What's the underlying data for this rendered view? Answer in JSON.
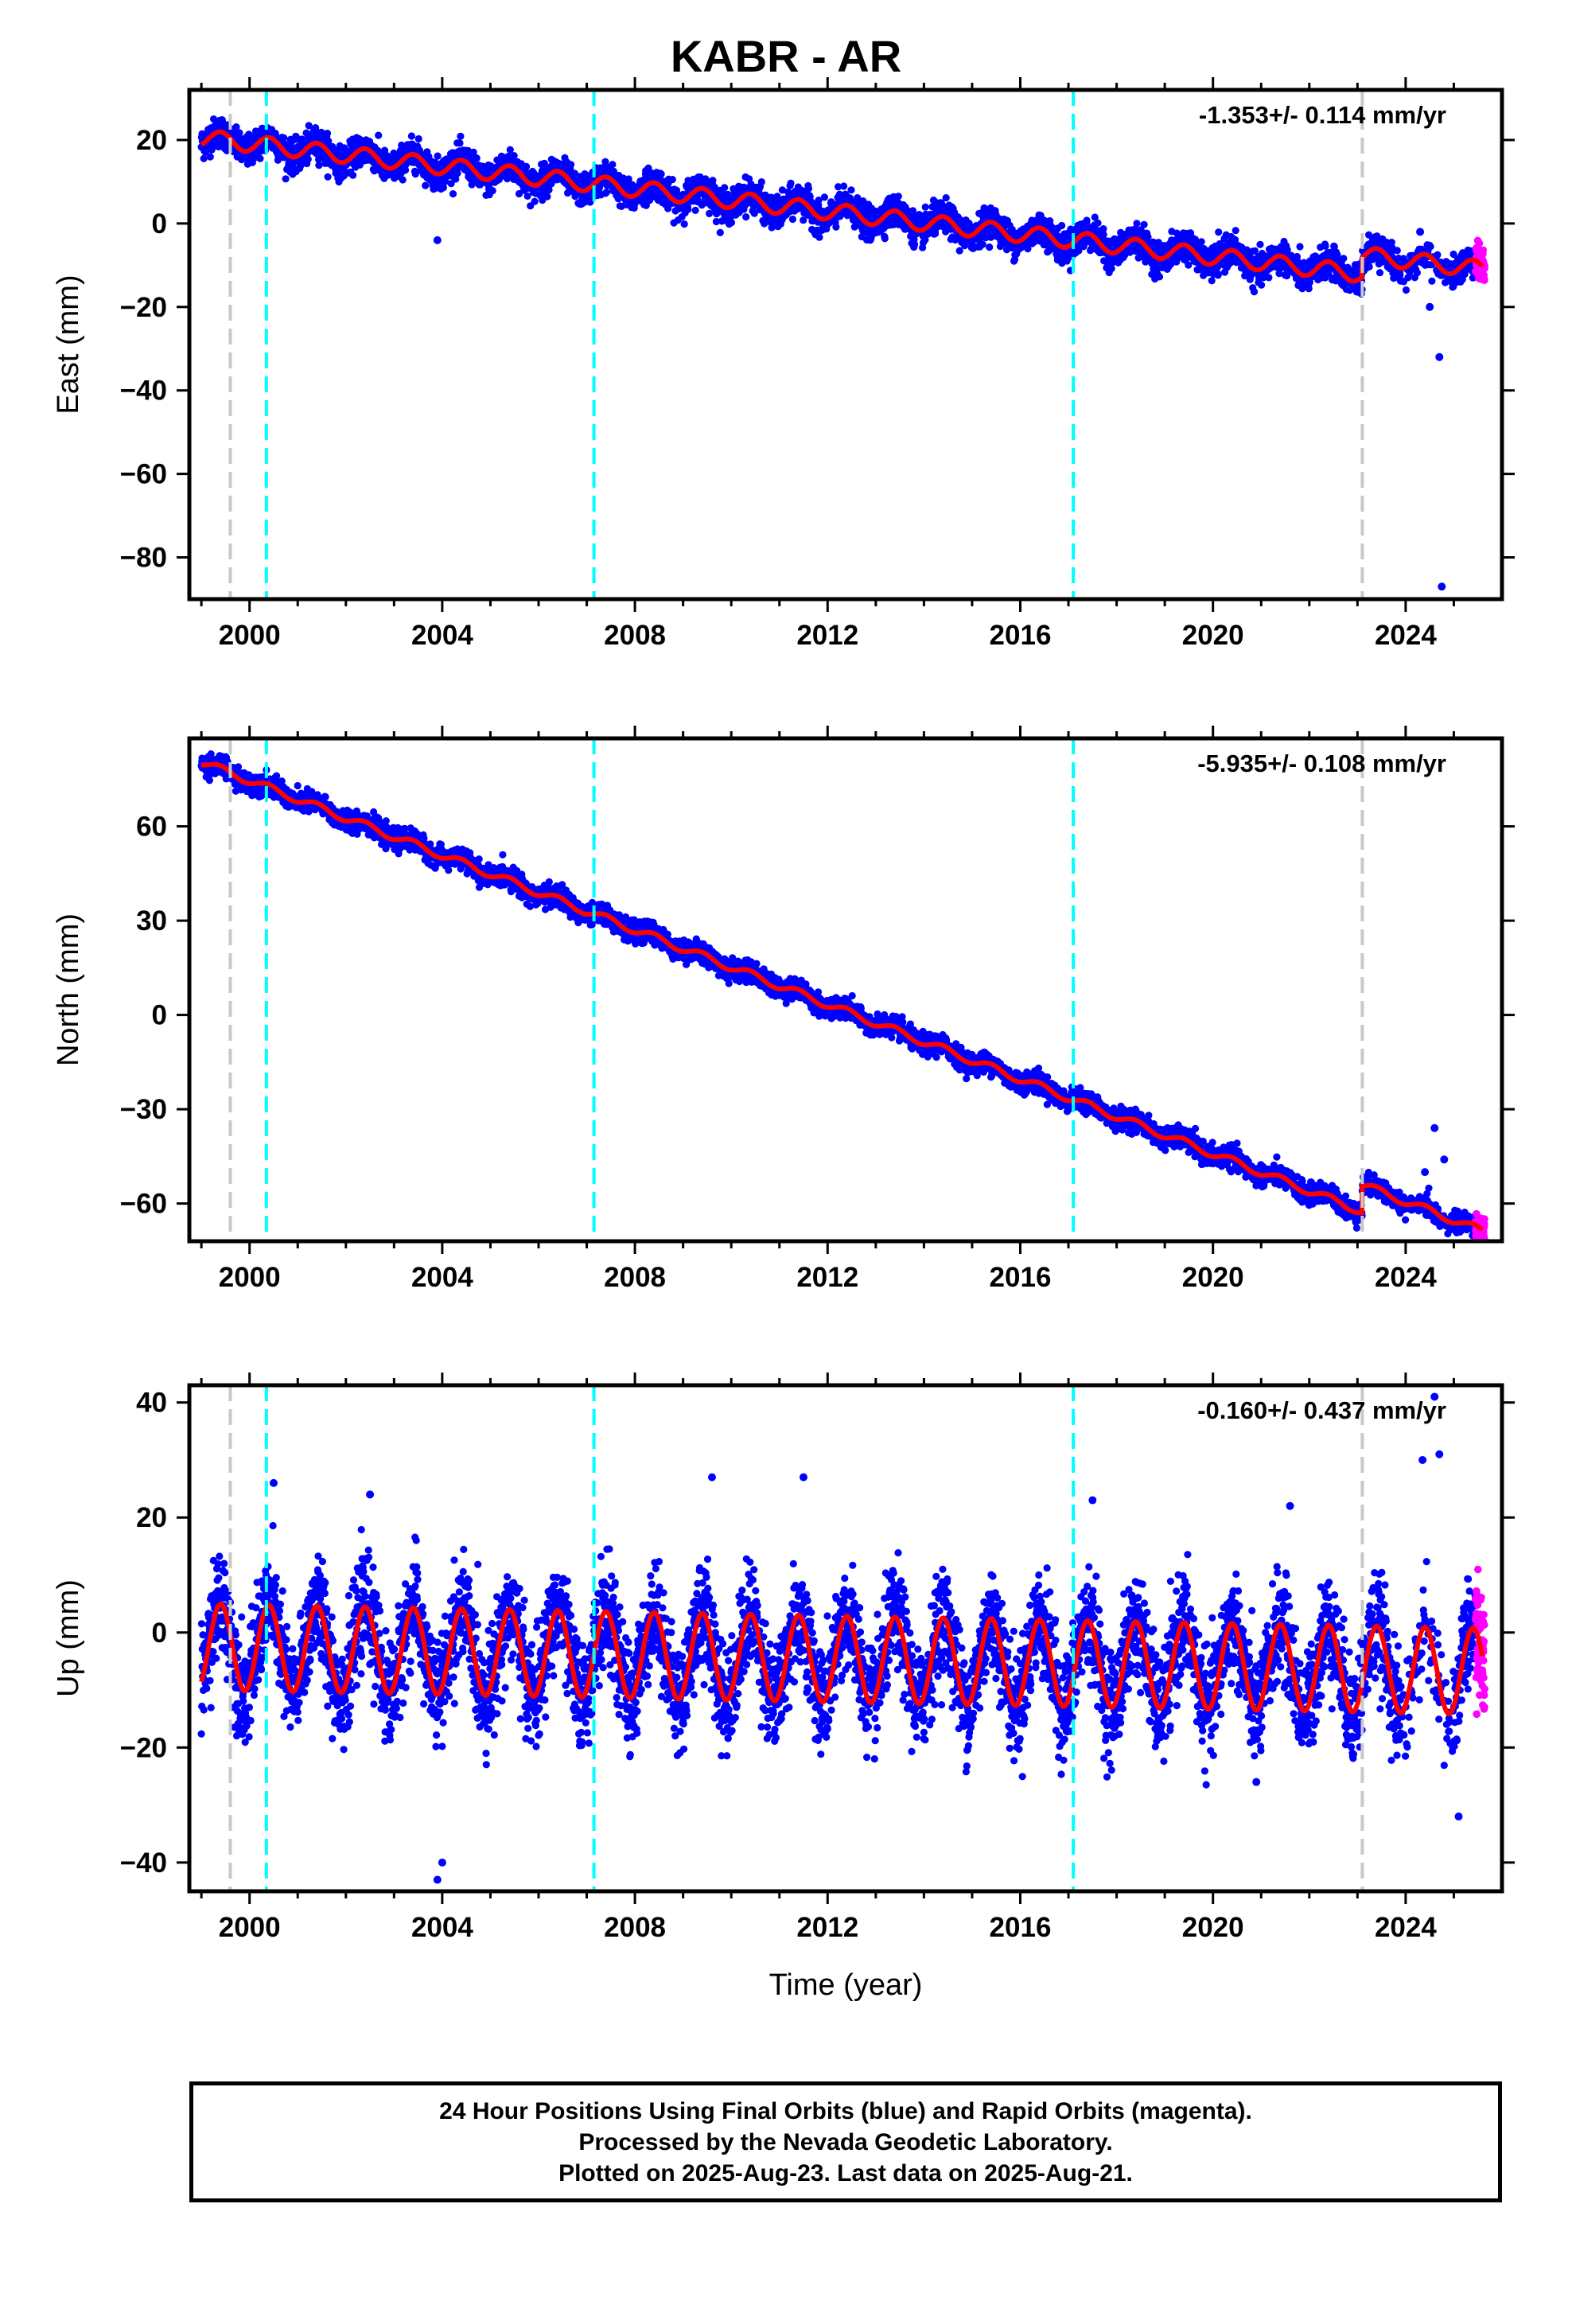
{
  "title": "KABR - AR",
  "footer": {
    "line1": "24 Hour Positions Using Final Orbits (blue) and Rapid Orbits (magenta).",
    "line2": "Processed by the Nevada Geodetic Laboratory.",
    "line3": "Plotted on 2025-Aug-23. Last data on 2025-Aug-21."
  },
  "colors": {
    "final_orbits": "#0000ff",
    "rapid_orbits": "#ff00ff",
    "model": "#ff0000",
    "equipment_change": "#00ffff",
    "earthquake": "#c8c8c8"
  },
  "chart_data": [
    {
      "type": "scatter",
      "component": "East",
      "ylabel": "East (mm)",
      "xlabel": "",
      "rate_text": "-1.353+/- 0.114 mm/yr",
      "xlim": [
        1998.75,
        2026.0
      ],
      "ylim": [
        -90,
        32
      ],
      "xticks": [
        2000,
        2004,
        2008,
        2012,
        2016,
        2020,
        2024
      ],
      "yticks": [
        -80,
        -60,
        -40,
        -20,
        0,
        20
      ],
      "trend": {
        "start": 1999.0,
        "end": 2025.6,
        "offset_at_start": 20.5,
        "rate": -1.353
      },
      "offsets": [
        {
          "at": 2023.1,
          "value": 4.5
        }
      ],
      "annual_amplitude": 2.0,
      "scatter_sigma": 1.8,
      "outliers": [
        {
          "x": 2003.9,
          "y": -4
        },
        {
          "x": 2024.7,
          "y": -32
        },
        {
          "x": 2024.75,
          "y": -87
        },
        {
          "x": 2024.5,
          "y": -20
        },
        {
          "x": 2024.3,
          "y": -2
        }
      ],
      "vlines_cyan": [
        2000.35,
        2007.15,
        2017.1
      ],
      "vlines_gray": [
        1999.6,
        2023.1
      ],
      "grid": false
    },
    {
      "type": "scatter",
      "component": "North",
      "ylabel": "North (mm)",
      "xlabel": "",
      "rate_text": "-5.935+/- 0.108 mm/yr",
      "xlim": [
        1998.75,
        2026.0
      ],
      "ylim": [
        -72,
        88
      ],
      "xticks": [
        2000,
        2004,
        2008,
        2012,
        2016,
        2020,
        2024
      ],
      "yticks": [
        -60,
        -30,
        0,
        30,
        60
      ],
      "trend": {
        "start": 1999.0,
        "end": 2025.6,
        "offset_at_start": 80.5,
        "rate": -5.935
      },
      "offsets": [
        {
          "at": 2023.1,
          "value": 8.5
        }
      ],
      "annual_amplitude": 1.2,
      "scatter_sigma": 1.6,
      "outliers": [
        {
          "x": 2024.6,
          "y": -36
        },
        {
          "x": 2024.4,
          "y": -50
        },
        {
          "x": 2024.8,
          "y": -46
        }
      ],
      "vlines_cyan": [
        2000.35,
        2007.15,
        2017.1
      ],
      "vlines_gray": [
        1999.6,
        2023.1
      ],
      "grid": false
    },
    {
      "type": "scatter",
      "component": "Up",
      "ylabel": "Up (mm)",
      "xlabel": "Time (year)",
      "rate_text": "-0.160+/- 0.437 mm/yr",
      "xlim": [
        1998.75,
        2026.0
      ],
      "ylim": [
        -45,
        43
      ],
      "xticks": [
        2000,
        2004,
        2008,
        2012,
        2016,
        2020,
        2024
      ],
      "yticks": [
        -40,
        -20,
        0,
        20,
        40
      ],
      "trend": {
        "start": 1999.0,
        "end": 2025.6,
        "offset_at_start": -2.5,
        "rate": -0.16
      },
      "offsets": [],
      "annual_amplitude": 7.5,
      "scatter_sigma": 4.5,
      "outliers": [
        {
          "x": 2003.9,
          "y": -43
        },
        {
          "x": 2004.0,
          "y": -40
        },
        {
          "x": 2020.9,
          "y": -26
        },
        {
          "x": 2024.6,
          "y": 41
        },
        {
          "x": 2024.7,
          "y": 31
        },
        {
          "x": 2024.35,
          "y": 30
        },
        {
          "x": 2025.1,
          "y": -32
        },
        {
          "x": 2023.8,
          "y": -18
        },
        {
          "x": 2000.5,
          "y": 26
        },
        {
          "x": 2002.5,
          "y": 24
        },
        {
          "x": 2009.6,
          "y": 27
        },
        {
          "x": 2011.5,
          "y": 27
        },
        {
          "x": 2017.5,
          "y": 23
        },
        {
          "x": 2021.6,
          "y": 22
        }
      ],
      "vlines_cyan": [
        2000.35,
        2007.15,
        2017.1
      ],
      "vlines_gray": [
        1999.6,
        2023.1
      ],
      "grid": false
    }
  ]
}
